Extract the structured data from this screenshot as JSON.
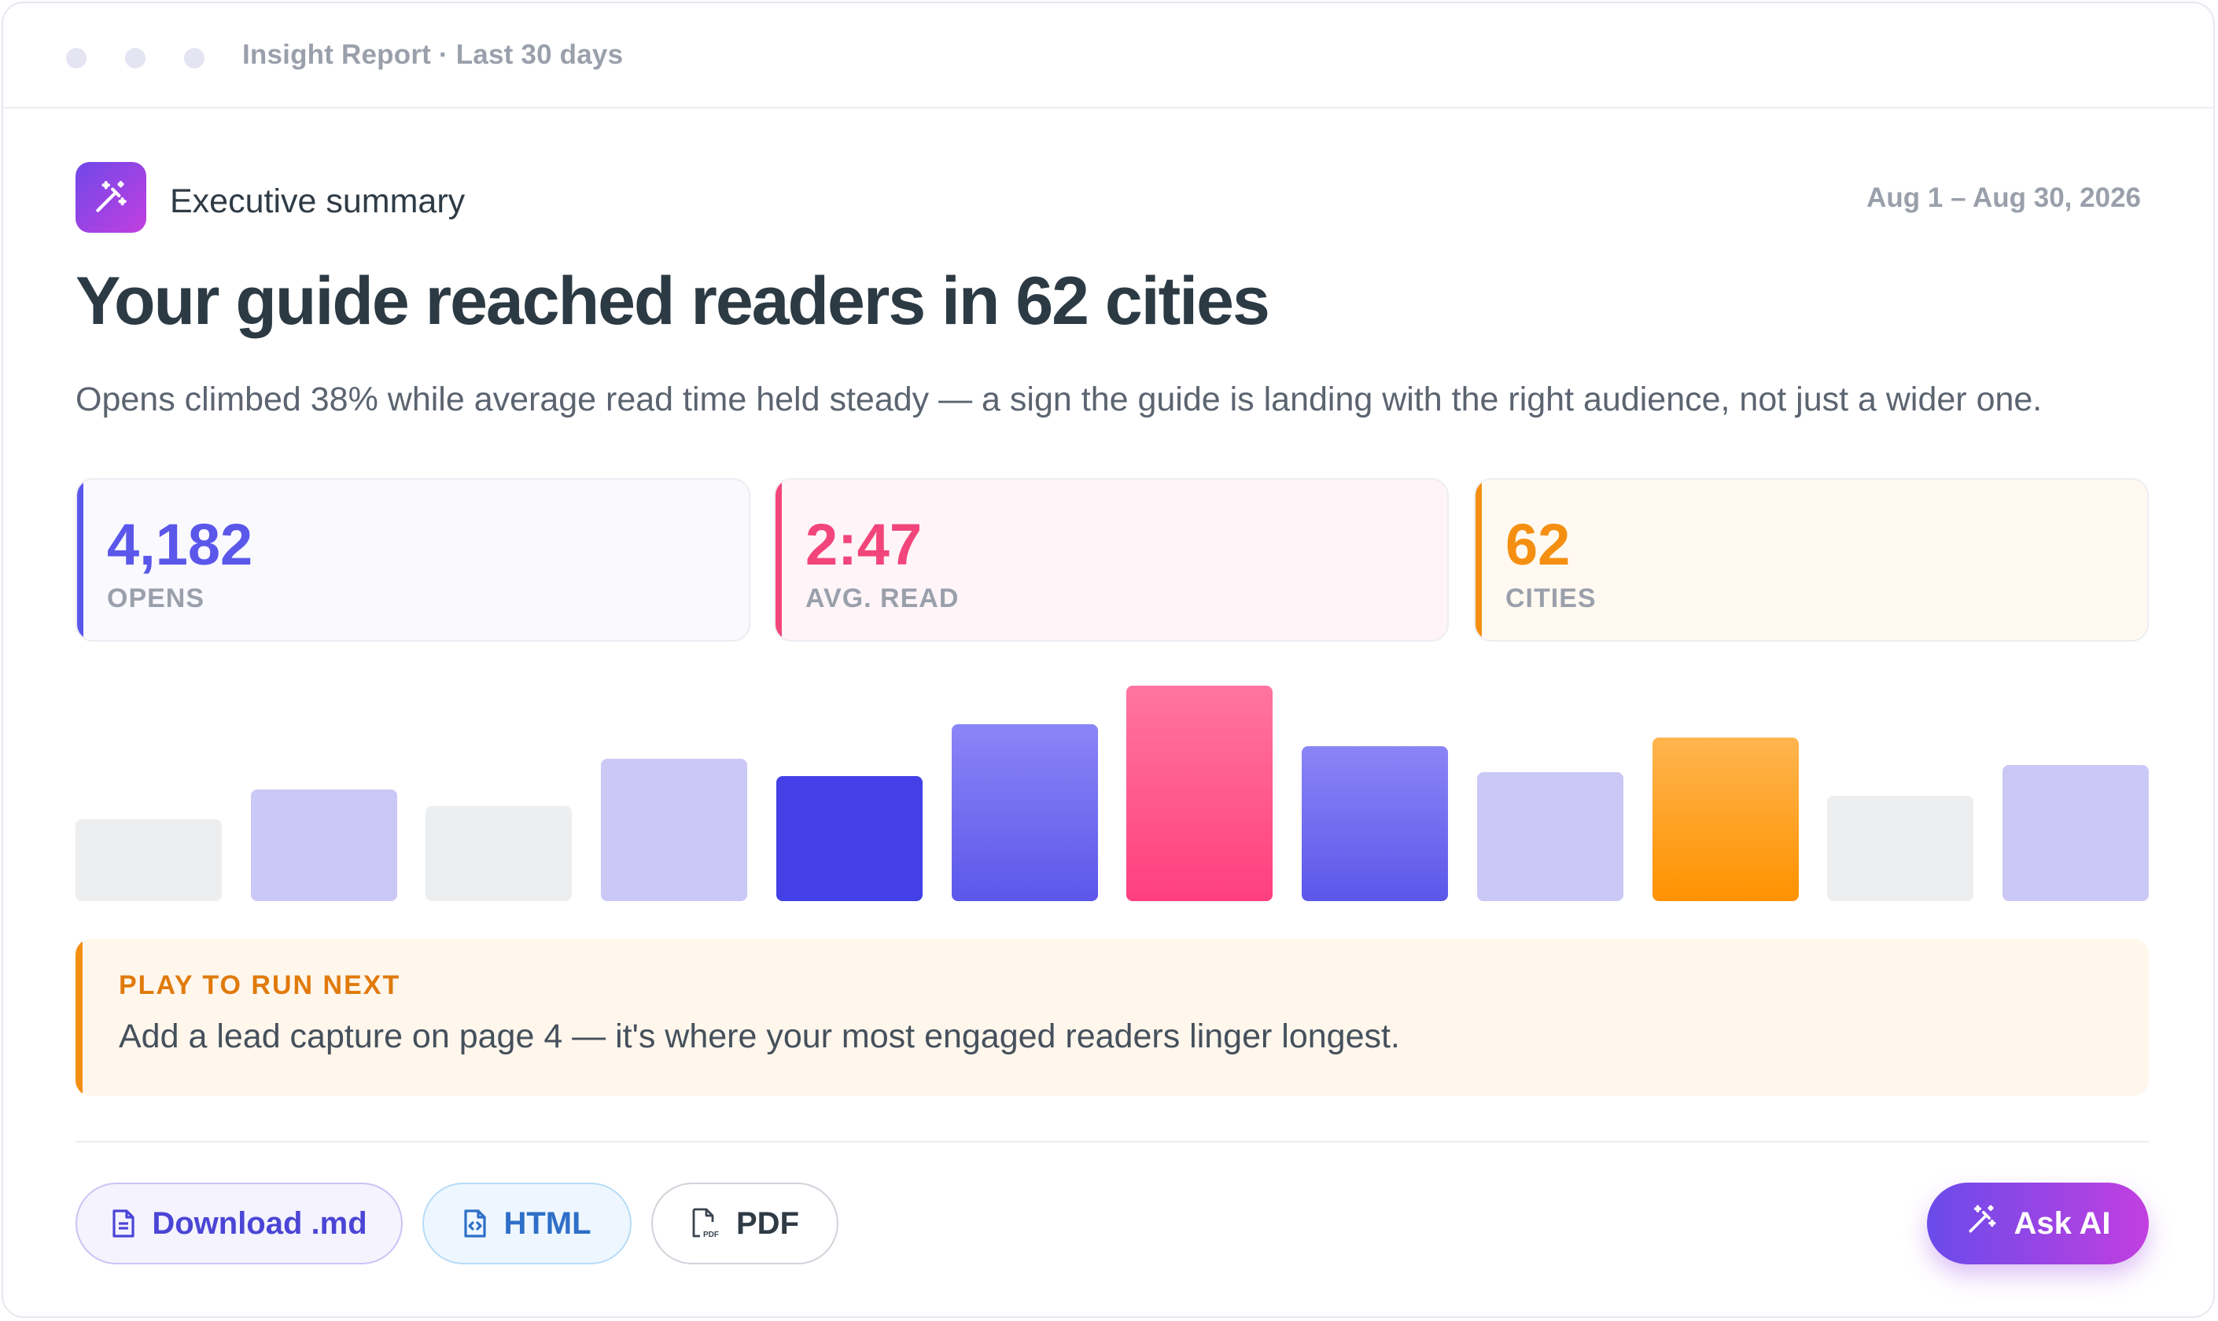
{
  "window": {
    "title": "Insight Report · Last 30 days"
  },
  "header": {
    "section_label": "Executive summary",
    "date_range": "Aug 1 – Aug 30, 2026",
    "headline": "Your guide reached readers in 62 cities",
    "subhead": "Opens climbed 38% while average read time held steady — a sign the guide is landing with the right audience, not just a wider one."
  },
  "stats": [
    {
      "value": "4,182",
      "label": "OPENS",
      "color": "#5b57ea"
    },
    {
      "value": "2:47",
      "label": "AVG. READ",
      "color": "#f2457c"
    },
    {
      "value": "62",
      "label": "CITIES",
      "color": "#f58f12"
    }
  ],
  "chart_data": {
    "type": "bar",
    "bars": [
      {
        "value": 0.38,
        "style": "gray"
      },
      {
        "value": 0.52,
        "style": "lavender"
      },
      {
        "value": 0.44,
        "style": "gray"
      },
      {
        "value": 0.66,
        "style": "lavender"
      },
      {
        "value": 0.58,
        "style": "indigo-solid"
      },
      {
        "value": 0.82,
        "style": "indigo-gradient"
      },
      {
        "value": 1.0,
        "style": "pink-gradient"
      },
      {
        "value": 0.72,
        "style": "indigo-gradient"
      },
      {
        "value": 0.6,
        "style": "lavender"
      },
      {
        "value": 0.76,
        "style": "orange-gradient"
      },
      {
        "value": 0.49,
        "style": "gray"
      },
      {
        "value": 0.63,
        "style": "lavender"
      }
    ]
  },
  "callout": {
    "title": "PLAY TO RUN NEXT",
    "text": "Add a lead capture on page 4 — it's where your most engaged readers linger longest."
  },
  "actions": {
    "download_md": "Download .md",
    "html": "HTML",
    "pdf": "PDF",
    "ask_ai": "Ask AI"
  },
  "icons": {
    "badge": "magic-wand-icon",
    "download_md": "document-icon",
    "html": "code-file-icon",
    "pdf": "pdf-file-icon",
    "ask_ai": "magic-wand-icon"
  }
}
